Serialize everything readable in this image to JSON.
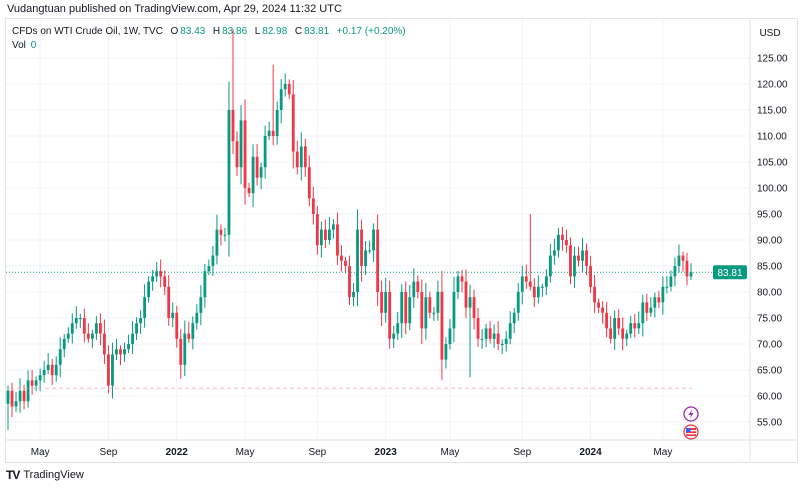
{
  "publisher": "Vudangtuan published on TradingView.com, Apr 29, 2024 11:32 UTC",
  "legend": {
    "symbol": "CFDs on WTI Crude Oil, 1W, TVC",
    "o_label": "O",
    "o": "83.43",
    "h_label": "H",
    "h": "83.86",
    "l_label": "L",
    "l": "82.98",
    "c_label": "C",
    "c": "83.81",
    "change": "+0.17 (+0.20%)",
    "vol_label": "Vol",
    "vol": "0"
  },
  "currency": "USD",
  "footer": {
    "logo": "TV",
    "brand": "TradingView"
  },
  "colors": {
    "up": "#089981",
    "down": "#f23645",
    "grid": "#f0f3fa",
    "last": "#089981",
    "event": "#9c27b0"
  },
  "chart_data": {
    "type": "candlestick",
    "title": "CFDs on WTI Crude Oil, 1W, TVC",
    "ylabel": "USD",
    "ylim": [
      50,
      130
    ],
    "y_ticks": [
      "55.00",
      "60.00",
      "65.00",
      "70.00",
      "75.00",
      "80.00",
      "85.00",
      "90.00",
      "95.00",
      "100.00",
      "105.00",
      "110.00",
      "115.00",
      "120.00",
      "125.00"
    ],
    "x_ticks": [
      {
        "label": "May",
        "bold": false,
        "week": 8
      },
      {
        "label": "Sep",
        "bold": false,
        "week": 25
      },
      {
        "label": "2022",
        "bold": true,
        "week": 42
      },
      {
        "label": "May",
        "bold": false,
        "week": 59
      },
      {
        "label": "Sep",
        "bold": false,
        "week": 77
      },
      {
        "label": "2023",
        "bold": true,
        "week": 94
      },
      {
        "label": "May",
        "bold": false,
        "week": 110
      },
      {
        "label": "Sep",
        "bold": false,
        "week": 128
      },
      {
        "label": "2024",
        "bold": true,
        "week": 145
      },
      {
        "label": "May",
        "bold": false,
        "week": 163
      }
    ],
    "first_open": 58.5,
    "closes": [
      61,
      58,
      59,
      61,
      59,
      63,
      62,
      63,
      64,
      65,
      66,
      64,
      66,
      69,
      71,
      72,
      74,
      75,
      75,
      72,
      71,
      72,
      74,
      72,
      68,
      62,
      68,
      69,
      68,
      69,
      70,
      72,
      74,
      75,
      79,
      82,
      83,
      84,
      83,
      81,
      75,
      76,
      71,
      66,
      72,
      71,
      74,
      76,
      79,
      84,
      85,
      87,
      92,
      91,
      91,
      115,
      109,
      104,
      113,
      100,
      99,
      106,
      102,
      104,
      110,
      111,
      110,
      115,
      119,
      120,
      118,
      107,
      104,
      108,
      104,
      98,
      95,
      89,
      92,
      90,
      92,
      93,
      87,
      86,
      85,
      79,
      80,
      92,
      85,
      88,
      88,
      92,
      80,
      76,
      80,
      71,
      72,
      74,
      80,
      74,
      79,
      82,
      80,
      73,
      79,
      76,
      76,
      80,
      67,
      70,
      73,
      80,
      83,
      82,
      77,
      79,
      75,
      71,
      71,
      73,
      71,
      72,
      70,
      70,
      71,
      74,
      76,
      80,
      83,
      82,
      81,
      79,
      81,
      81,
      83,
      87,
      88,
      91,
      90,
      89,
      83,
      87,
      86,
      88,
      85,
      81,
      78,
      77,
      76,
      73,
      71,
      75,
      73,
      71,
      72,
      74,
      73,
      74,
      78,
      76,
      77,
      79,
      78,
      81,
      81,
      83,
      85,
      87,
      86,
      83,
      83.81
    ],
    "notable_highs": [
      {
        "week": 56,
        "high": 130.5
      },
      {
        "week": 66,
        "high": 123.7
      },
      {
        "week": 130,
        "high": 95
      }
    ],
    "notable_lows": [
      {
        "week": 0,
        "low": 53.5
      },
      {
        "week": 115,
        "low": 63.6
      }
    ],
    "last_price": 83.81,
    "support_line": 61.5
  }
}
